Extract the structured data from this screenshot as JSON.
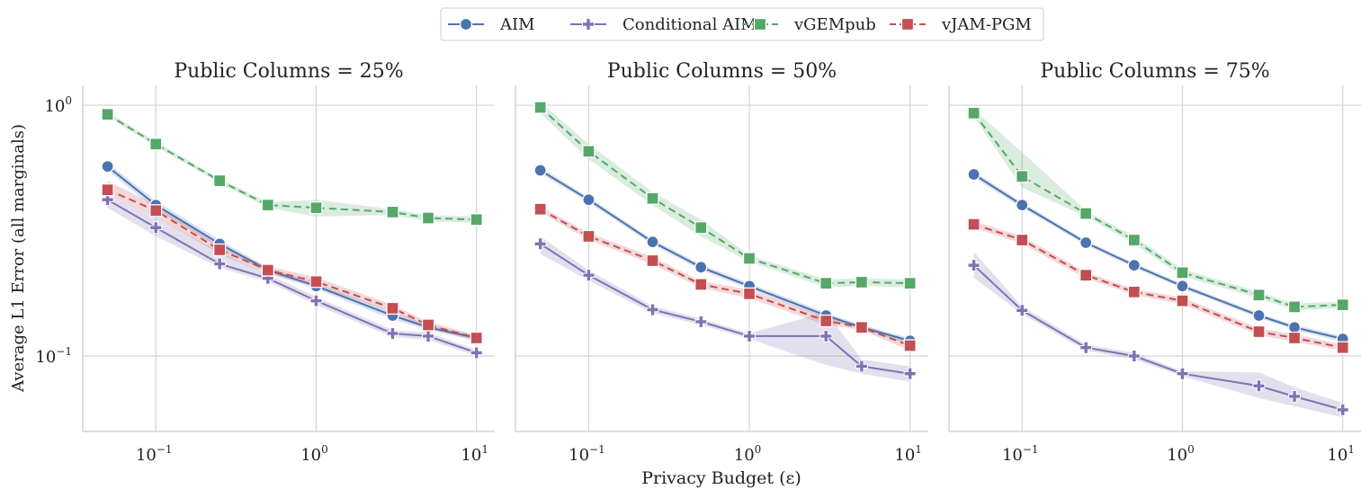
{
  "chart_data": {
    "type": "line",
    "xlabel": "Privacy Budget (ε)",
    "ylabel": "Average L1 Error (all marginals)",
    "xscale": "log",
    "yscale": "log",
    "xlim": [
      0.035,
      13
    ],
    "ylim": [
      0.05,
      1.2
    ],
    "x": [
      0.05,
      0.1,
      0.25,
      0.5,
      1,
      3,
      5,
      10
    ],
    "x_ticks": [
      {
        "value": 0.1,
        "base": "10",
        "exp": "−1"
      },
      {
        "value": 1,
        "base": "10",
        "exp": "0"
      },
      {
        "value": 10,
        "base": "10",
        "exp": "1"
      }
    ],
    "y_ticks": [
      {
        "value": 1,
        "base": "10",
        "exp": "0"
      },
      {
        "value": 0.1,
        "base": "10",
        "exp": "−1"
      }
    ],
    "legend": [
      {
        "key": "aim",
        "name": "AIM",
        "color": "#4c72b0",
        "marker": "circle",
        "dash": "solid"
      },
      {
        "key": "caim",
        "name": "Conditional AIM",
        "color": "#8172b3",
        "marker": "plus",
        "dash": "solid"
      },
      {
        "key": "vgem",
        "name": "vGEMpub",
        "color": "#55a868",
        "marker": "square",
        "dash": "dashed"
      },
      {
        "key": "vjam",
        "name": "vJAM-PGM",
        "color": "#c44e52",
        "marker": "square",
        "dash": "dashed"
      }
    ],
    "panels": [
      {
        "title": "Public Columns = 25%",
        "series": [
          {
            "key": "aim",
            "values": [
              0.57,
              0.4,
              0.28,
              0.22,
              0.19,
              0.145,
              0.13,
              0.118
            ],
            "lower": [
              0.55,
              0.385,
              0.27,
              0.215,
              0.185,
              0.14,
              0.127,
              0.115
            ],
            "upper": [
              0.59,
              0.415,
              0.29,
              0.225,
              0.195,
              0.15,
              0.133,
              0.121
            ]
          },
          {
            "key": "caim",
            "values": [
              0.42,
              0.325,
              0.233,
              0.204,
              0.166,
              0.123,
              0.12,
              0.103
            ],
            "lower": [
              0.39,
              0.3,
              0.225,
              0.198,
              0.16,
              0.119,
              0.116,
              0.1
            ],
            "upper": [
              0.44,
              0.36,
              0.26,
              0.212,
              0.172,
              0.127,
              0.124,
              0.106
            ]
          },
          {
            "key": "vgem",
            "values": [
              0.92,
              0.7,
              0.5,
              0.4,
              0.39,
              0.375,
              0.355,
              0.35
            ],
            "lower": [
              0.9,
              0.685,
              0.49,
              0.39,
              0.36,
              0.365,
              0.345,
              0.34
            ],
            "upper": [
              0.94,
              0.715,
              0.51,
              0.41,
              0.42,
              0.385,
              0.365,
              0.36
            ]
          },
          {
            "key": "vjam",
            "values": [
              0.46,
              0.38,
              0.265,
              0.22,
              0.198,
              0.155,
              0.133,
              0.118
            ],
            "lower": [
              0.44,
              0.36,
              0.255,
              0.212,
              0.19,
              0.15,
              0.129,
              0.115
            ],
            "upper": [
              0.5,
              0.4,
              0.275,
              0.228,
              0.206,
              0.16,
              0.137,
              0.121
            ]
          }
        ]
      },
      {
        "title": "Public Columns = 50%",
        "series": [
          {
            "key": "aim",
            "values": [
              0.55,
              0.42,
              0.285,
              0.226,
              0.19,
              0.145,
              0.13,
              0.115
            ],
            "lower": [
              0.535,
              0.41,
              0.278,
              0.22,
              0.185,
              0.141,
              0.127,
              0.112
            ],
            "upper": [
              0.565,
              0.43,
              0.292,
              0.232,
              0.195,
              0.149,
              0.133,
              0.118
            ]
          },
          {
            "key": "caim",
            "values": [
              0.28,
              0.21,
              0.153,
              0.137,
              0.12,
              0.12,
              0.091,
              0.085
            ],
            "lower": [
              0.255,
              0.2,
              0.148,
              0.133,
              0.117,
              0.092,
              0.085,
              0.079
            ],
            "upper": [
              0.3,
              0.22,
              0.158,
              0.141,
              0.123,
              0.15,
              0.097,
              0.091
            ]
          },
          {
            "key": "vgem",
            "values": [
              0.98,
              0.655,
              0.425,
              0.325,
              0.245,
              0.195,
              0.197,
              0.195
            ],
            "lower": [
              0.93,
              0.61,
              0.4,
              0.3,
              0.238,
              0.188,
              0.19,
              0.188
            ],
            "upper": [
              1.03,
              0.7,
              0.45,
              0.35,
              0.252,
              0.202,
              0.204,
              0.202
            ]
          },
          {
            "key": "vjam",
            "values": [
              0.385,
              0.3,
              0.24,
              0.193,
              0.177,
              0.138,
              0.13,
              0.11
            ],
            "lower": [
              0.375,
              0.29,
              0.232,
              0.187,
              0.17,
              0.133,
              0.127,
              0.105
            ],
            "upper": [
              0.395,
              0.31,
              0.248,
              0.199,
              0.184,
              0.143,
              0.133,
              0.115
            ]
          }
        ]
      },
      {
        "title": "Public Columns = 75%",
        "series": [
          {
            "key": "aim",
            "values": [
              0.53,
              0.4,
              0.283,
              0.23,
              0.19,
              0.145,
              0.13,
              0.117
            ],
            "lower": [
              0.515,
              0.39,
              0.277,
              0.225,
              0.186,
              0.142,
              0.127,
              0.114
            ],
            "upper": [
              0.545,
              0.41,
              0.289,
              0.235,
              0.194,
              0.148,
              0.133,
              0.12
            ]
          },
          {
            "key": "caim",
            "values": [
              0.23,
              0.152,
              0.108,
              0.1,
              0.085,
              0.076,
              0.069,
              0.061
            ],
            "lower": [
              0.205,
              0.147,
              0.105,
              0.097,
              0.083,
              0.068,
              0.063,
              0.057
            ],
            "upper": [
              0.26,
              0.158,
              0.111,
              0.103,
              0.087,
              0.086,
              0.075,
              0.065
            ]
          },
          {
            "key": "vgem",
            "values": [
              0.93,
              0.52,
              0.37,
              0.29,
              0.215,
              0.175,
              0.157,
              0.16
            ],
            "lower": [
              0.9,
              0.47,
              0.36,
              0.28,
              0.208,
              0.17,
              0.152,
              0.155
            ],
            "upper": [
              0.96,
              0.65,
              0.38,
              0.3,
              0.222,
              0.18,
              0.162,
              0.165
            ]
          },
          {
            "key": "vjam",
            "values": [
              0.335,
              0.29,
              0.21,
              0.18,
              0.166,
              0.125,
              0.118,
              0.108
            ],
            "lower": [
              0.325,
              0.28,
              0.204,
              0.175,
              0.161,
              0.121,
              0.114,
              0.105
            ],
            "upper": [
              0.345,
              0.3,
              0.216,
              0.185,
              0.171,
              0.129,
              0.122,
              0.111
            ]
          }
        ]
      }
    ]
  }
}
